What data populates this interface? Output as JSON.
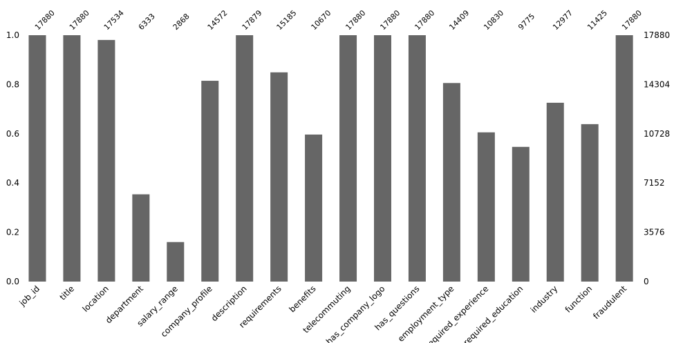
{
  "chart_data": {
    "type": "bar",
    "title": "",
    "xlabel": "",
    "ylabel": "",
    "categories": [
      "job_id",
      "title",
      "location",
      "department",
      "salary_range",
      "company_profile",
      "description",
      "requirements",
      "benefits",
      "telecommuting",
      "has_company_logo",
      "has_questions",
      "employment_type",
      "required_experience",
      "required_education",
      "industry",
      "function",
      "fraudulent"
    ],
    "values": [
      17880,
      17880,
      17534,
      6333,
      2868,
      14572,
      17879,
      15185,
      10670,
      17880,
      17880,
      17880,
      14409,
      10830,
      9775,
      12977,
      11425,
      17880
    ],
    "total": 17880,
    "ylim": [
      0,
      1.0
    ],
    "left_ticks": [
      "0.0",
      "0.2",
      "0.4",
      "0.6",
      "0.8",
      "1.0"
    ],
    "left_tick_values": [
      0,
      0.2,
      0.4,
      0.6,
      0.8,
      1.0
    ],
    "right_ticks": [
      "0",
      "3576",
      "7152",
      "10728",
      "14304",
      "17880"
    ],
    "bar_color": "#666666",
    "grid": false,
    "legend": "none"
  }
}
